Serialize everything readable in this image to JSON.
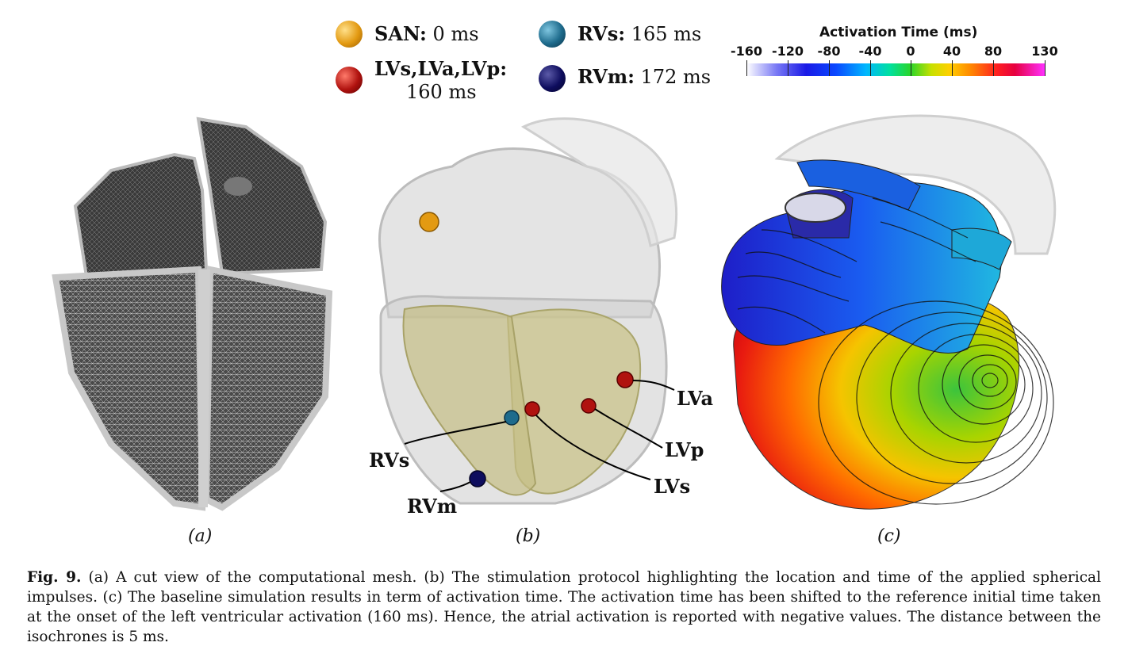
{
  "legend": {
    "san": {
      "label": "SAN:",
      "value": "0 ms",
      "color": "#e39a12"
    },
    "lvs": {
      "label": "LVs,LVa,LVp:",
      "value": "160 ms",
      "color": "#b0120f"
    },
    "rvs": {
      "label": "RVs:",
      "value": "165 ms",
      "color": "#1e6b8c"
    },
    "rvm": {
      "label": "RVm:",
      "value": "172 ms",
      "color": "#0e0d5e"
    }
  },
  "colorbar": {
    "title": "Activation Time (ms)",
    "ticks": [
      "-160",
      "-120",
      "-80",
      "-40",
      "0",
      "40",
      "80",
      "130"
    ]
  },
  "panels": {
    "a": {
      "label": "(a)"
    },
    "b": {
      "label": "(b)",
      "annotations": {
        "lva": "LVa",
        "lvp": "LVp",
        "lvs": "LVs",
        "rvs": "RVs",
        "rvm": "RVm"
      }
    },
    "c": {
      "label": "(c)"
    }
  },
  "caption": {
    "fig": "Fig. 9.",
    "text": "(a) A cut view of the computational mesh. (b) The stimulation protocol highlighting the location and time of the applied spherical impulses. (c) The baseline simulation results in term of activation time. The activation time has been shifted to the reference initial time taken at the onset of the left ventricular activation (160 ms). Hence, the atrial activation is reported with negative values. The distance between the isochrones is 5 ms."
  }
}
